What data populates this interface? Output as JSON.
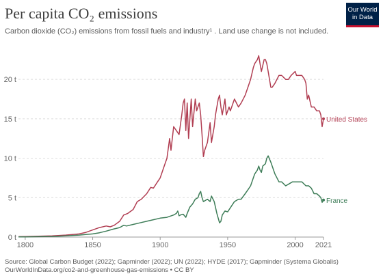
{
  "header": {
    "title": "Per capita CO₂ emissions",
    "subtitle": "Carbon dioxide (CO₂) emissions from fossil fuels and industry¹ . Land use change is not included."
  },
  "logo": {
    "line1": "Our World",
    "line2": "in Data",
    "bg_color": "#002147",
    "accent_color": "#c8102e"
  },
  "footer": {
    "source": "Source: Global Carbon Budget (2022); Gapminder (2022); UN (2022); HYDE (2017); Gapminder (Systema Globalis)",
    "link": "OurWorldInData.org/co2-and-greenhouse-gas-emissions • CC BY"
  },
  "chart_data": {
    "type": "line",
    "title": "Per capita CO₂ emissions",
    "xlim": [
      1795,
      2021
    ],
    "ylim": [
      0,
      24
    ],
    "x_ticks": [
      1800,
      1850,
      1900,
      1950,
      2000,
      2021
    ],
    "x_tick_labels": [
      "1800",
      "1850",
      "1900",
      "1950",
      "2000",
      "2021"
    ],
    "y_ticks": [
      0,
      5,
      10,
      15,
      20
    ],
    "y_tick_labels": [
      "0 t",
      "5 t",
      "10 t",
      "15 t",
      "20 t"
    ],
    "grid": "horizontal dotted",
    "series": [
      {
        "name": "United States",
        "color": "#b13e52",
        "x": [
          1795,
          1800,
          1810,
          1820,
          1830,
          1840,
          1845,
          1850,
          1855,
          1860,
          1863,
          1866,
          1870,
          1873,
          1876,
          1880,
          1883,
          1886,
          1890,
          1893,
          1895,
          1898,
          1900,
          1903,
          1905,
          1907,
          1908,
          1910,
          1912,
          1914,
          1916,
          1917,
          1918,
          1919,
          1920,
          1921,
          1923,
          1924,
          1926,
          1927,
          1929,
          1930,
          1931,
          1932,
          1933,
          1935,
          1937,
          1938,
          1940,
          1941,
          1943,
          1944,
          1945,
          1946,
          1948,
          1949,
          1951,
          1952,
          1955,
          1958,
          1960,
          1963,
          1965,
          1967,
          1969,
          1970,
          1972,
          1973,
          1974,
          1975,
          1977,
          1978,
          1979,
          1980,
          1982,
          1983,
          1985,
          1988,
          1990,
          1993,
          1995,
          1997,
          2000,
          2001,
          2003,
          2005,
          2007,
          2008,
          2009,
          2010,
          2012,
          2014,
          2016,
          2018,
          2019,
          2020,
          2021
        ],
        "y": [
          0.05,
          0.07,
          0.1,
          0.15,
          0.25,
          0.4,
          0.6,
          0.9,
          1.2,
          1.4,
          1.3,
          1.5,
          2.0,
          2.8,
          3.0,
          3.5,
          4.5,
          4.8,
          5.5,
          6.3,
          6.2,
          7.0,
          7.5,
          9.0,
          10.0,
          12.5,
          11.0,
          14.0,
          13.5,
          13.0,
          15.5,
          17.0,
          17.5,
          13.5,
          17.0,
          12.5,
          17.5,
          14.0,
          17.5,
          16.0,
          17.0,
          15.5,
          13.0,
          10.2,
          11.0,
          12.0,
          14.5,
          12.0,
          14.0,
          15.5,
          17.5,
          18.0,
          16.5,
          15.5,
          17.5,
          15.5,
          16.5,
          16.0,
          17.5,
          16.5,
          17.0,
          18.0,
          19.0,
          20.0,
          21.5,
          22.0,
          22.5,
          23.0,
          22.0,
          21.0,
          22.5,
          22.5,
          22.0,
          21.0,
          19.0,
          19.0,
          19.5,
          20.5,
          20.5,
          20.0,
          20.0,
          20.5,
          21.0,
          20.5,
          20.5,
          20.5,
          20.0,
          19.5,
          17.5,
          18.0,
          16.5,
          16.5,
          16.0,
          16.0,
          15.5,
          14.0,
          15.0
        ]
      },
      {
        "name": "France",
        "color": "#3e7d58",
        "x": [
          1795,
          1800,
          1810,
          1820,
          1830,
          1840,
          1850,
          1855,
          1860,
          1865,
          1870,
          1873,
          1875,
          1880,
          1885,
          1890,
          1895,
          1900,
          1905,
          1910,
          1912,
          1913,
          1914,
          1915,
          1917,
          1919,
          1920,
          1922,
          1924,
          1926,
          1928,
          1929,
          1930,
          1931,
          1932,
          1935,
          1937,
          1938,
          1940,
          1942,
          1944,
          1945,
          1946,
          1948,
          1950,
          1955,
          1958,
          1960,
          1963,
          1965,
          1967,
          1969,
          1970,
          1972,
          1973,
          1974,
          1975,
          1976,
          1978,
          1979,
          1980,
          1982,
          1985,
          1988,
          1990,
          1993,
          1995,
          1998,
          2000,
          2002,
          2005,
          2008,
          2010,
          2012,
          2014,
          2016,
          2018,
          2019,
          2020,
          2021
        ],
        "y": [
          0.02,
          0.03,
          0.05,
          0.08,
          0.15,
          0.25,
          0.4,
          0.55,
          0.75,
          1.0,
          1.2,
          1.5,
          1.4,
          1.6,
          1.8,
          2.0,
          2.2,
          2.4,
          2.5,
          2.8,
          3.0,
          3.3,
          2.7,
          2.8,
          2.9,
          2.5,
          3.0,
          3.8,
          4.2,
          4.8,
          5.0,
          5.5,
          5.8,
          5.0,
          4.5,
          4.8,
          4.5,
          5.2,
          4.5,
          3.0,
          1.8,
          2.0,
          2.8,
          3.3,
          3.2,
          4.5,
          4.8,
          4.8,
          5.5,
          6.0,
          6.5,
          7.5,
          8.0,
          8.5,
          9.0,
          8.5,
          8.2,
          9.0,
          9.3,
          10.0,
          10.3,
          9.5,
          8.0,
          7.0,
          7.0,
          6.5,
          6.7,
          7.0,
          7.0,
          7.0,
          7.0,
          6.5,
          6.5,
          6.2,
          5.5,
          5.5,
          5.2,
          5.0,
          4.4,
          4.7
        ]
      }
    ]
  }
}
